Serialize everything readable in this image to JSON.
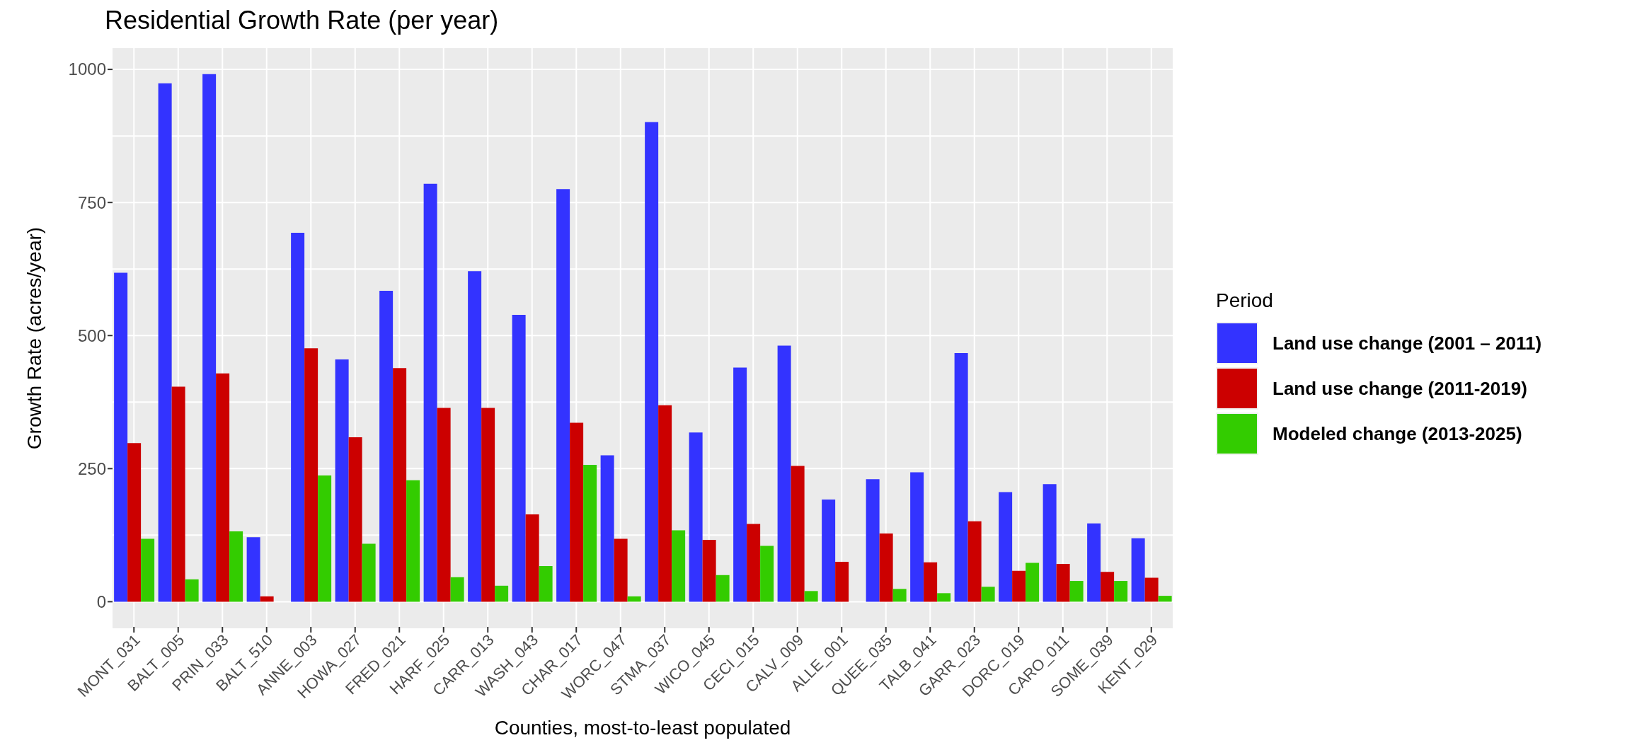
{
  "chart_data": {
    "type": "bar",
    "title": "Residential Growth Rate (per year)",
    "xlabel": "Counties, most-to-least populated",
    "ylabel": "Growth Rate (acres/year)",
    "legend_title": "Period",
    "categories": [
      "MONT_031",
      "BALT_005",
      "PRIN_033",
      "BALT_510",
      "ANNE_003",
      "HOWA_027",
      "FRED_021",
      "HARF_025",
      "CARR_013",
      "WASH_043",
      "CHAR_017",
      "WORC_047",
      "STMA_037",
      "WICO_045",
      "CECI_015",
      "CALV_009",
      "ALLE_001",
      "QUEE_035",
      "TALB_041",
      "GARR_023",
      "DORC_019",
      "CARO_011",
      "SOME_039",
      "KENT_029"
    ],
    "series": [
      {
        "name": "Land use change (2001 – 2011)",
        "color": "#3333ff",
        "values": [
          618,
          974,
          991,
          121,
          693,
          455,
          584,
          785,
          621,
          539,
          775,
          275,
          901,
          318,
          440,
          481,
          192,
          230,
          243,
          467,
          206,
          221,
          147,
          119
        ]
      },
      {
        "name": "Land use change (2011-2019)",
        "color": "#cc0000",
        "values": [
          298,
          404,
          429,
          10,
          476,
          309,
          439,
          364,
          364,
          164,
          336,
          118,
          369,
          116,
          146,
          255,
          75,
          128,
          74,
          151,
          58,
          71,
          56,
          45
        ]
      },
      {
        "name": "Modeled change (2013-2025)",
        "color": "#33cc00",
        "values": [
          118,
          42,
          132,
          0,
          237,
          109,
          228,
          46,
          30,
          67,
          257,
          10,
          134,
          50,
          105,
          20,
          0,
          24,
          16,
          28,
          73,
          39,
          39,
          11
        ]
      }
    ],
    "ylim": [
      -50,
      1040
    ],
    "yticks": [
      0,
      {
        "value": 125,
        "label": null
      },
      250,
      {
        "value": 375,
        "label": null
      },
      500,
      {
        "value": 625,
        "label": null
      },
      750,
      {
        "value": 875,
        "label": null
      },
      1000
    ],
    "grid": true,
    "legend": "right"
  }
}
